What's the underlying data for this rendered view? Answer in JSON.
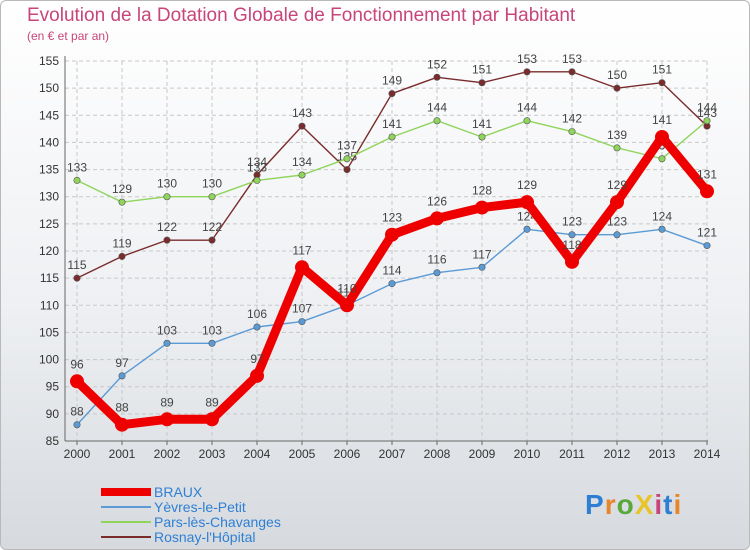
{
  "header": {
    "title": "Evolution de la Dotation Globale de Fonctionnement par Habitant",
    "subtitle": "(en € et par an)"
  },
  "logo": {
    "text": "ProXiti",
    "colors": [
      "#2e7fd4",
      "#e8842a",
      "#5aa83c",
      "#e8c42a",
      "#c8457a",
      "#2e7fd4",
      "#e8842a"
    ]
  },
  "chart_data": {
    "type": "line",
    "title": "Evolution de la Dotation Globale de Fonctionnement par Habitant",
    "subtitle": "(en € et par an)",
    "x": [
      "2000",
      "2001",
      "2002",
      "2003",
      "2004",
      "2005",
      "2006",
      "2007",
      "2008",
      "2009",
      "2010",
      "2011",
      "2012",
      "2013",
      "2014"
    ],
    "ylim": [
      85,
      155
    ],
    "yticks": [
      85,
      90,
      95,
      100,
      105,
      110,
      115,
      120,
      125,
      130,
      135,
      140,
      145,
      150,
      155
    ],
    "grid": true,
    "legend_position": "bottom-left",
    "series": [
      {
        "name": "BRAUX",
        "color": "#ee0000",
        "values": [
          96,
          88,
          89,
          89,
          97,
          117,
          110,
          123,
          126,
          128,
          129,
          118,
          129,
          141,
          131
        ]
      },
      {
        "name": "Yèvres-le-Petit",
        "color": "#5b9bd5",
        "values": [
          88,
          97,
          103,
          103,
          106,
          107,
          110,
          114,
          116,
          117,
          124,
          123,
          123,
          124,
          121
        ]
      },
      {
        "name": "Pars-lès-Chavanges",
        "color": "#8fd45b",
        "values": [
          133,
          129,
          130,
          130,
          133,
          134,
          137,
          141,
          144,
          141,
          144,
          142,
          139,
          137,
          144
        ]
      },
      {
        "name": "Rosnay-l'Hôpital",
        "color": "#7a2b2b",
        "values": [
          115,
          119,
          122,
          122,
          134,
          143,
          135,
          149,
          152,
          151,
          153,
          153,
          150,
          151,
          143
        ]
      }
    ]
  }
}
